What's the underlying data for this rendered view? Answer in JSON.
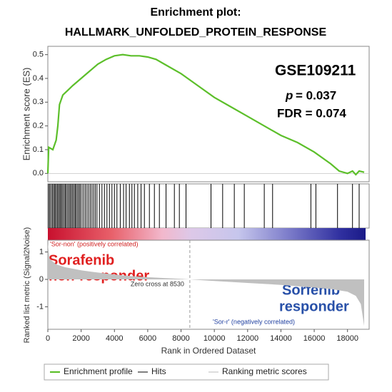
{
  "chart_data": {
    "type": "gsea",
    "title": [
      "Enrichment plot:",
      "HALLMARK_UNFOLDED_PROTEIN_RESPONSE"
    ],
    "xlabel": "Rank in Ordered Dataset",
    "xlim": [
      0,
      19300
    ],
    "xticks": [
      0,
      2000,
      4000,
      6000,
      8000,
      10000,
      12000,
      14000,
      16000,
      18000
    ],
    "es": {
      "name": "Enrichment profile",
      "color": "#5cbf2a",
      "ylabel": "Enrichment score (ES)",
      "ylim": [
        -0.035,
        0.535
      ],
      "yticks": [
        {
          "value": 0,
          "label": "0.0"
        },
        0.1,
        0.2,
        0.3,
        0.4,
        0.5
      ],
      "x": [
        0,
        50,
        300,
        500,
        600,
        700,
        900,
        1200,
        1500,
        2000,
        2500,
        3000,
        3500,
        4000,
        4500,
        5000,
        5500,
        6000,
        6500,
        7000,
        8000,
        9000,
        10000,
        11000,
        12000,
        13000,
        14000,
        15000,
        16000,
        17000,
        17500,
        18000,
        18300,
        18500,
        18700,
        19000
      ],
      "values": [
        0.0,
        0.11,
        0.1,
        0.14,
        0.2,
        0.29,
        0.33,
        0.35,
        0.37,
        0.4,
        0.43,
        0.46,
        0.48,
        0.495,
        0.5,
        0.495,
        0.495,
        0.49,
        0.48,
        0.46,
        0.42,
        0.37,
        0.32,
        0.28,
        0.24,
        0.2,
        0.16,
        0.13,
        0.09,
        0.04,
        0.01,
        0.0,
        0.01,
        -0.005,
        0.01,
        0.005
      ]
    },
    "hits": {
      "name": "Hits",
      "color": "#000000",
      "x": [
        50,
        120,
        200,
        280,
        350,
        420,
        480,
        560,
        620,
        700,
        760,
        830,
        900,
        980,
        1050,
        1120,
        1200,
        1280,
        1350,
        1430,
        1500,
        1580,
        1650,
        1720,
        1800,
        1880,
        1950,
        2050,
        2150,
        2250,
        2350,
        2450,
        2550,
        2650,
        2750,
        2850,
        2950,
        3100,
        3250,
        3400,
        3550,
        3700,
        3850,
        4000,
        4150,
        4350,
        4550,
        4700,
        4900,
        5050,
        5200,
        5400,
        5600,
        5800,
        6100,
        6400,
        6700,
        7100,
        7600,
        7900,
        8300,
        9800,
        10500,
        11200,
        11800,
        13000,
        13500,
        15800,
        16100,
        17400,
        18300,
        18700
      ]
    },
    "metric": {
      "name": "Ranking metric scores",
      "color": "#c0c0c0",
      "ylabel": "Ranked list metric (Signal2Noise)",
      "ylim": [
        -1.82,
        1.43
      ],
      "yticks": [
        -1,
        0,
        1
      ],
      "x": [
        0,
        100,
        500,
        1000,
        2000,
        3000,
        4000,
        5000,
        6000,
        7000,
        8000,
        8530,
        9000,
        10000,
        12000,
        14000,
        16000,
        17000,
        18000,
        18500,
        18800,
        19000
      ],
      "values": [
        1.3,
        0.75,
        0.55,
        0.45,
        0.33,
        0.25,
        0.18,
        0.12,
        0.08,
        0.05,
        0.02,
        0,
        -0.02,
        -0.06,
        -0.13,
        -0.2,
        -0.3,
        -0.35,
        -0.45,
        -0.6,
        -0.9,
        -1.7
      ]
    },
    "zero_cross": {
      "value": 8530,
      "label": "Zero cross at 8530"
    },
    "dataset": "GSE109211",
    "p_symbol": "p",
    "p_text": "= 0.037",
    "fdr_text": "FDR = 0.074",
    "pos_label": "'Sor-non' (positively correlated)",
    "neg_label": "'Sor-r' (negatively correlated)",
    "nonresponder": [
      "Sorafenib",
      "non-responder"
    ],
    "responder": [
      "Sorfenib",
      "responder"
    ]
  }
}
